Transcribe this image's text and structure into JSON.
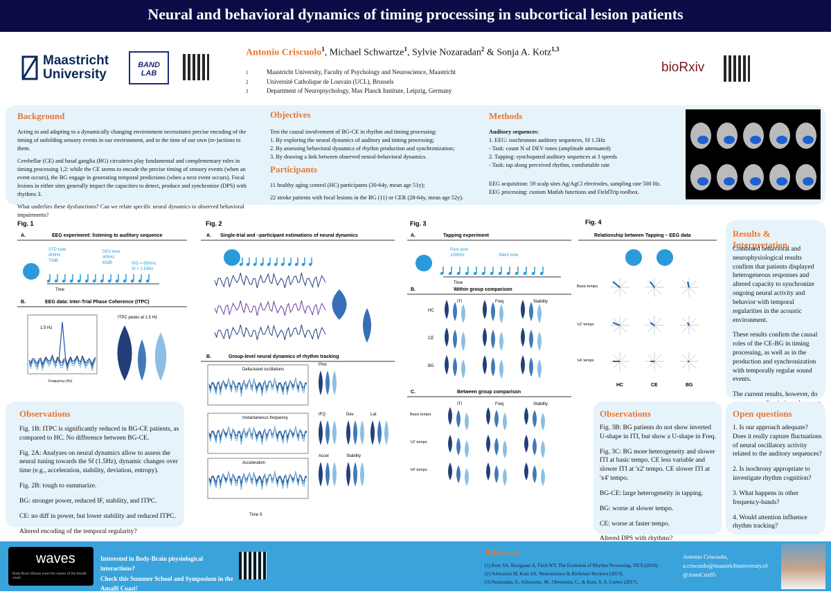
{
  "header": {
    "title": "Neural and behavioral dynamics of timing processing in subcortical lesion patients"
  },
  "logos": {
    "maastricht": "Maastricht University",
    "bandlab": "BAND LAB",
    "biorxiv": "bioRxiv"
  },
  "authors": [
    {
      "name": "Antonio Criscuolo",
      "sup": "1"
    },
    {
      "name": ", Michael Schwartze",
      "sup": "1"
    },
    {
      "name": ", Sylvie Nozaradan",
      "sup": "2"
    },
    {
      "name": " & Sonja A. Kotz",
      "sup": "1,3"
    }
  ],
  "affiliations": [
    {
      "num": "1",
      "text": "Maastricht University, Faculty of Psychology and Neuroscience, Maastricht"
    },
    {
      "num": "2",
      "text": "Université Catholique de Louvain (UCL), Brussels"
    },
    {
      "num": "3",
      "text": "Department of Neuropsychology, Max Planck Institute, Leipzig, Germany"
    }
  ],
  "background": {
    "heading": "Background",
    "paragraphs": [
      "Acting in and adapting to a dynamically changing environment necessitates precise encoding of the timing of unfolding sensory events in our environment, and to the time of our own (re-)actions to them.",
      "Cerebellar (CE) and basal ganglia (BG) circuitries play fundamental and complementary roles in timing processing 1,2: while the CE seems to encode the precise timing of sensory events (when an event occurs), the BG engage in generating temporal predictions (when a next event occurs). Focal lesions in either sites generally impact the capacities to detect, produce and synchronize (DPS) with rhythms 3.",
      "What underlies these dysfunctions? Can we relate specific neural dynamics to observed behavioral impairments?"
    ]
  },
  "objectives": {
    "heading": "Objectives",
    "intro": "Test the causal involvement of BG-CE in rhythm and timing processing:",
    "items": [
      "1.   By exploring the neural dynamics of auditory and timing processing;",
      "2.   By assessing behavioral dynamics of rhythm production and synchronization;",
      "3.   By drawing a link between observed neural-behavioral dynamics."
    ]
  },
  "participants": {
    "heading": "Participants",
    "lines": [
      "11 healthy aging control (HC) participants (30-64y, mean age 51y);",
      "22 stroke patients with focal lesions in the BG (11) or CER (28-64y, mean age 52y)."
    ]
  },
  "methods": {
    "heading": "Methods",
    "lines": [
      "Auditory sequences:",
      "1.   EEG: isochronous auditory sequences, Sf 1.5Hz",
      "-   Task: count N of DEV tones (amplitude attenuated)",
      "2.   Tapping: synchopated auditory sequences at 3 speeds",
      "-   Task: tap along perceived rhythm, comfortable rate"
    ],
    "acquisition": [
      "EEG acquisition: 59 scalp sites Ag/AgCl electrodes, sampling rate 500 Hz.",
      "EEG processing: custom Matlab functions and FieldTrip toolbox."
    ]
  },
  "fig1": {
    "label": "Fig. 1",
    "a": "A.",
    "a_title": "EEG experiment: listening to auditory sequence",
    "std": "STD tone\n400Hz\n70dB",
    "dev": "DEV tone\n400Hz\n65dB",
    "iso": "ISO = 650ms\nSf = 1.54Hz",
    "time": "Time",
    "b": "B.",
    "b_title": "EEG data: Inter-Trial Phase Coherence (ITPC)",
    "peak": "1.5 Hz",
    "violin_title": "ITPC peaks at 1.5 Hz",
    "xlabel": "Frequency (Hz)"
  },
  "fig2": {
    "label": "Fig. 2",
    "a": "A.",
    "a_title": "Single-trial and –participant estimations of neural dynamics",
    "b": "B.",
    "b_title": "Group-level neural dynamics of rhythm tracking",
    "panels": [
      "Delta-band oscillations",
      "Instantaneous frequency",
      "Acceleration"
    ],
    "metrics": [
      "Pow",
      "IFQ",
      "Dev",
      "Lat",
      "Accel",
      "Stability"
    ],
    "xlabel": "Time S"
  },
  "fig3": {
    "label": "Fig. 3",
    "a": "A.",
    "a_title": "Tapping experiment",
    "pure": "Pure tone\n1000Hz",
    "silent": "Silent tone",
    "time": "Time",
    "b": "B.",
    "b_title": "Within group comparison",
    "c": "C.",
    "c_title": "Between group comparison",
    "measures": [
      "ITI",
      "Freq",
      "Stability"
    ],
    "groups": [
      "HC",
      "CE",
      "BG"
    ],
    "tempi": [
      "Basic tempo",
      "'x2' tempo",
      "'x4' tempo"
    ]
  },
  "fig4": {
    "label": "Fig. 4",
    "title": "Relationship between Tapping – EEG data",
    "tempi": [
      "Basic tempo",
      "'x2' tempo",
      "'x4' tempo"
    ],
    "groups": [
      "HC",
      "CE",
      "BG"
    ]
  },
  "results": {
    "heading": "Results & Interpretation",
    "paragraphs": [
      "Combined behavioral and neurophysiological results confirm that patients displayed heterogeneous responses and altered capacity to synchronize ongoing neural activity and behavior with temporal regularities in the acoustic environment.",
      "These results confirm the causal roles of the CE-BG in timing processing, as well as in the production and synchronization with temporally regular sound events.",
      "The current results, however, do not seem to discriminate between CE-BG specific timing functions."
    ]
  },
  "observations1": {
    "heading": "Observations",
    "paragraphs": [
      "Fig. 1B: ITPC is significantly reduced in BG-CE patients, as compared to HC. No difference between BG-CE.",
      "Fig. 2A: Analyses on neural dynamics allow to assess the neural tuning towards the Sf (1.5Hz), dynamic changes over time (e.g., acceleration, stability, deviation, entropy).",
      "Fig. 2B: tough to summarize.",
      "BG: stronger power, reduced IF, stability, and ITPC.",
      "CE: no diff in power, but lower stability and reduced ITPC.",
      "Altered encoding of the temporal regularity?"
    ]
  },
  "observations2": {
    "heading": "Observations",
    "paragraphs": [
      "Fig. 3B: BG patients do not show inverted U-shape in ITI, but show a U-shape in Freq.",
      "Fig. 3C: BG more heterogeneity and slower ITI at basic tempo. CE less variable and slower ITI at 'x2' tempo. CE slower ITI at 'x4' tempo.",
      "BG-CE: large heterogeneity in tapping.",
      "BG: worse at slower tempo.",
      "CE: worse at faster tempo.",
      "Altered DPS with rhythms?"
    ]
  },
  "open_questions": {
    "heading": "Open questions",
    "paragraphs": [
      "1. Is our approach adequate? Does it really capture fluctuations of neural oscillatory activity related to the auditory sequences?",
      "2. Is isochrony appropriate to investigate rhythm cognition?",
      "3. What happens in other frequency-bands?",
      "4. Would attention influence rhythm tracking?"
    ]
  },
  "footer": {
    "waves": "waves",
    "waves_sub": "Body-Brain Waves meet the waves of the Amalfi coast",
    "promo": [
      "Interested in Body-Brain physiological interactions?",
      "Check this Summer School and Symposium in the Amalfi Coast!"
    ],
    "references_heading": "References",
    "references": [
      "(1) Kotz SA, Ravignani A, Fitch WT. The Evolution of Rhythm Processing. TICS (2018).",
      "(2) Schwartze M, Kotz SA. Neuroscience & Biobehav Reviews (2013).",
      "(3) Nozaradan, S., Schwartze, M., Obermeier, C., & Kotz, S. A. Cortex (2017)."
    ],
    "contact": [
      "Antonio Criscuolo,",
      "a.criscuolo@maastrichtuniversity.nl",
      "@AntoCris95"
    ]
  }
}
